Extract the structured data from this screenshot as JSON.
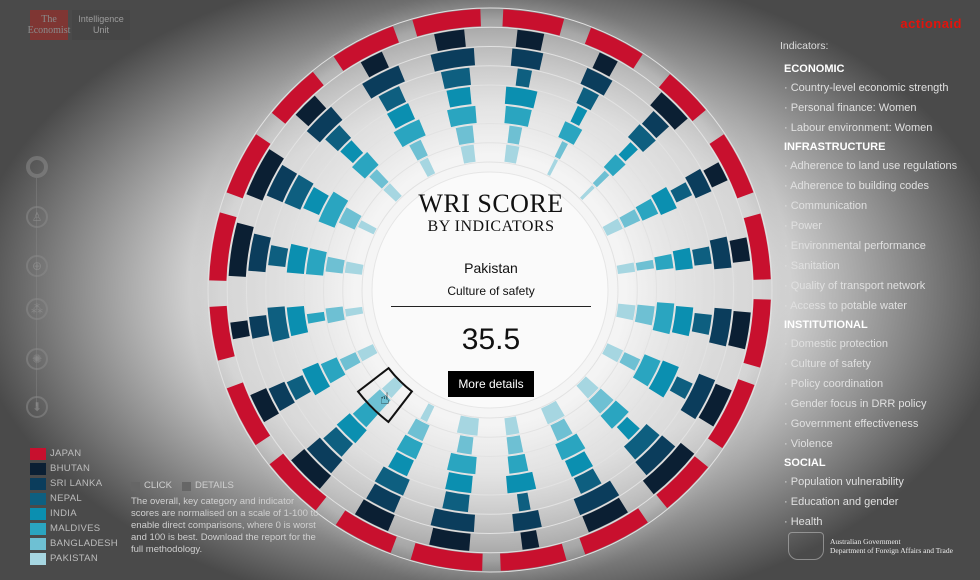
{
  "brand": {
    "economist_line1": "The",
    "economist_line2": "Economist",
    "eiu_line1": "Intelligence",
    "eiu_line2": "Unit",
    "partner": "actionaid"
  },
  "center": {
    "title": "WRI SCORE",
    "subtitle": "BY INDICATORS",
    "country": "Pakistan",
    "indicator": "Culture of safety",
    "score": "35.5",
    "button": "More details"
  },
  "legend": [
    {
      "label": "JAPAN",
      "color": "#c8102e"
    },
    {
      "label": "BHUTAN",
      "color": "#0b1f33"
    },
    {
      "label": "SRI LANKA",
      "color": "#0b3d5c"
    },
    {
      "label": "NEPAL",
      "color": "#0e5f80"
    },
    {
      "label": "INDIA",
      "color": "#0b8fb0"
    },
    {
      "label": "MALDIVES",
      "color": "#2aa5c0"
    },
    {
      "label": "BANGLADESH",
      "color": "#6ec0d3"
    },
    {
      "label": "PAKISTAN",
      "color": "#a6d6e1"
    }
  ],
  "howto": {
    "click": "CLICK",
    "details": "DETAILS",
    "text": "The overall, key category and indicator scores are normalised on a scale of 1-100 to enable direct comparisons, where 0 is worst and 100 is best. Download the report for the full methodology."
  },
  "indicators_panel": {
    "title": "Indicators:",
    "groups": [
      {
        "name": "ECONOMIC",
        "items": [
          "Country-level economic strength",
          "Personal finance: Women",
          "Labour environment: Women"
        ]
      },
      {
        "name": "INFRASTRUCTURE",
        "items": [
          "Adherence to land use regulations",
          "Adherence to building codes",
          "Communication",
          "Power",
          "Environmental performance",
          "Sanitation",
          "Quality of transport network",
          "Access to potable water"
        ]
      },
      {
        "name": "INSTITUTIONAL",
        "items": [
          "Domestic protection",
          "Culture of safety",
          "Policy coordination",
          "Gender focus in DRR policy",
          "Government effectiveness",
          "Violence"
        ]
      },
      {
        "name": "SOCIAL",
        "items": [
          "Population vulnerability",
          "Education and gender",
          "Health"
        ]
      }
    ]
  },
  "government": {
    "line1": "Australian Government",
    "line2": "Department of Foreign Affairs and Trade"
  },
  "side_icons": [
    "ring-icon",
    "person-icon",
    "globe-icon",
    "grid-circles-icon",
    "dots-burst-icon",
    "download-icon"
  ],
  "chart_data": {
    "type": "radial-bar",
    "scale": [
      0,
      100
    ],
    "countries": [
      "JAPAN",
      "BHUTAN",
      "SRI LANKA",
      "NEPAL",
      "INDIA",
      "MALDIVES",
      "BANGLADESH",
      "PAKISTAN"
    ],
    "indicators": [
      "Country-level economic strength",
      "Personal finance: Women",
      "Labour environment: Women",
      "Adherence to land use regulations",
      "Adherence to building codes",
      "Communication",
      "Power",
      "Environmental performance",
      "Sanitation",
      "Quality of transport network",
      "Access to potable water",
      "Domestic protection",
      "Culture of safety",
      "Policy coordination",
      "Gender focus in DRR policy",
      "Government effectiveness",
      "Violence",
      "Population vulnerability",
      "Education and gender",
      "Health"
    ],
    "series": [
      {
        "name": "JAPAN",
        "values": [
          85,
          80,
          70,
          90,
          92,
          95,
          98,
          80,
          97,
          92,
          100,
          85,
          90,
          88,
          75,
          95,
          90,
          80,
          92,
          95
        ]
      },
      {
        "name": "BHUTAN",
        "values": [
          40,
          30,
          55,
          30,
          35,
          55,
          60,
          85,
          65,
          25,
          60,
          55,
          60,
          45,
          25,
          80,
          75,
          40,
          35,
          45
        ]
      },
      {
        "name": "SRI LANKA",
        "values": [
          50,
          45,
          35,
          40,
          50,
          60,
          70,
          65,
          70,
          45,
          70,
          50,
          55,
          40,
          35,
          60,
          55,
          55,
          65,
          70
        ]
      },
      {
        "name": "NEPAL",
        "values": [
          25,
          30,
          40,
          25,
          30,
          35,
          30,
          60,
          40,
          20,
          45,
          55,
          45,
          35,
          60,
          35,
          55,
          35,
          40,
          50
        ]
      },
      {
        "name": "INDIA",
        "values": [
          60,
          20,
          20,
          45,
          40,
          55,
          65,
          30,
          45,
          55,
          50,
          40,
          50,
          55,
          55,
          55,
          45,
          30,
          45,
          45
        ]
      },
      {
        "name": "MALDIVES",
        "values": [
          55,
          40,
          30,
          35,
          30,
          65,
          60,
          50,
          55,
          40,
          60,
          45,
          40,
          45,
          20,
          55,
          70,
          45,
          60,
          60
        ]
      },
      {
        "name": "BANGLADESH",
        "values": [
          30,
          15,
          15,
          30,
          20,
          45,
          30,
          45,
          40,
          35,
          35,
          40,
          40,
          30,
          35,
          35,
          40,
          25,
          30,
          40
        ]
      },
      {
        "name": "PAKISTAN",
        "values": [
          35,
          10,
          10,
          30,
          25,
          40,
          35,
          40,
          50,
          35,
          55,
          20,
          35.5,
          30,
          20,
          30,
          20,
          25,
          25,
          35
        ]
      }
    ],
    "highlight": {
      "country": "Pakistan",
      "indicator": "Culture of safety",
      "value": 35.5
    }
  }
}
